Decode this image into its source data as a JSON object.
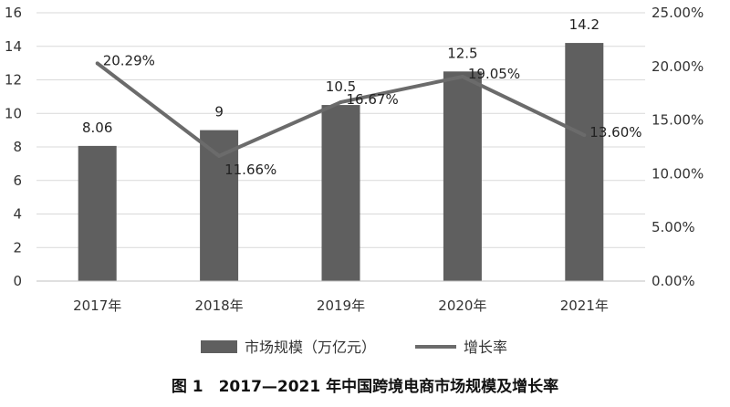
{
  "chart_data": {
    "type": "bar",
    "categories": [
      "2017年",
      "2018年",
      "2019年",
      "2020年",
      "2021年"
    ],
    "series": [
      {
        "name": "市场规模（万亿元）",
        "type": "bar",
        "axis": "left",
        "values": [
          8.06,
          9,
          10.5,
          12.5,
          14.2
        ],
        "labels": [
          "8.06",
          "9",
          "10.5",
          "12.5",
          "14.2"
        ]
      },
      {
        "name": "增长率",
        "type": "line",
        "axis": "right",
        "values": [
          20.29,
          11.66,
          16.67,
          19.05,
          13.6
        ],
        "labels": [
          "20.29%",
          "11.66%",
          "16.67%",
          "19.05%",
          "13.60%"
        ]
      }
    ],
    "ylim": [
      0,
      16
    ],
    "y_ticks": [
      "0",
      "2",
      "4",
      "6",
      "8",
      "10",
      "12",
      "14",
      "16"
    ],
    "y2lim": [
      0,
      25
    ],
    "y2_ticks": [
      "0.00%",
      "5.00%",
      "10.00%",
      "15.00%",
      "20.00%",
      "25.00%"
    ],
    "grid": true,
    "legend": "bottom",
    "caption": "图 1　2017—2021 年中国跨境电商市场规模及增长率",
    "colors": {
      "bar": "#5f5f5f",
      "line": "#6b6b6b",
      "grid": "#d9d9d9",
      "text": "#333333"
    }
  }
}
